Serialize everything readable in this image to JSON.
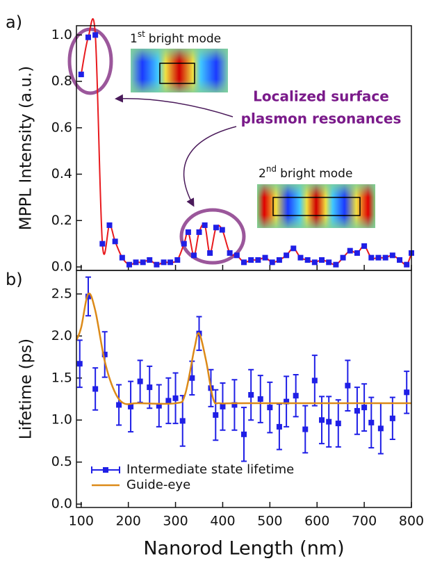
{
  "chart_data": [
    {
      "type": "line",
      "panel_label": "a)",
      "ylabel": "MPPL Intensity (a.u.)",
      "xlim": [
        90,
        800
      ],
      "xticks": [
        100,
        200,
        300,
        400,
        500,
        600,
        700,
        800
      ],
      "ylim": [
        -0.015,
        1.04
      ],
      "yticks": [
        {
          "value": 0,
          "label": "0.0"
        },
        {
          "value": 0.2,
          "label": "0.2"
        },
        {
          "value": 0.4,
          "label": "0.4"
        },
        {
          "value": 0.6,
          "label": "0.6"
        },
        {
          "value": 0.8,
          "label": "0.8"
        },
        {
          "value": 1,
          "label": "1.0"
        }
      ],
      "annotations": {
        "mode1": {
          "number": "1",
          "suffix": "st",
          "text": "bright mode"
        },
        "mode2": {
          "number": "2",
          "suffix": "nd",
          "text": "bright mode"
        },
        "lspr": [
          "Localized surface",
          "plasmon resonances"
        ]
      },
      "series": [
        {
          "color": "#1f1fe6",
          "line_color": "#e8191d",
          "x": [
            100,
            115,
            130,
            145,
            160,
            172,
            187,
            202,
            216,
            231,
            245,
            260,
            275,
            289,
            304,
            318,
            327,
            339,
            350,
            362,
            373,
            386,
            399,
            415,
            430,
            445,
            460,
            475,
            490,
            505,
            520,
            535,
            550,
            565,
            580,
            595,
            610,
            625,
            640,
            655,
            670,
            685,
            700,
            715,
            730,
            745,
            760,
            775,
            790,
            800
          ],
          "values": [
            0.83,
            0.99,
            1.0,
            0.1,
            0.18,
            0.11,
            0.04,
            0.01,
            0.02,
            0.02,
            0.03,
            0.01,
            0.02,
            0.02,
            0.03,
            0.1,
            0.15,
            0.05,
            0.15,
            0.18,
            0.06,
            0.17,
            0.16,
            0.06,
            0.05,
            0.02,
            0.03,
            0.03,
            0.04,
            0.02,
            0.03,
            0.05,
            0.08,
            0.04,
            0.03,
            0.02,
            0.03,
            0.02,
            0.01,
            0.04,
            0.07,
            0.06,
            0.09,
            0.04,
            0.04,
            0.04,
            0.05,
            0.03,
            0.01,
            0.06
          ]
        }
      ]
    },
    {
      "type": "errorbar",
      "panel_label": "b)",
      "ylabel": "Lifetime (ps)",
      "xlabel": "Nanorod Length (nm)",
      "legend": "lower left",
      "xlim": [
        90,
        800
      ],
      "xticks": [
        100,
        200,
        300,
        400,
        500,
        600,
        700,
        800
      ],
      "ylim": [
        -0.04,
        2.78
      ],
      "yticks": [
        {
          "value": 0,
          "label": "0.0"
        },
        {
          "value": 0.5,
          "label": "0.5"
        },
        {
          "value": 1,
          "label": "1.0"
        },
        {
          "value": 1.5,
          "label": "1.5"
        },
        {
          "value": 2,
          "label": "2.0"
        },
        {
          "value": 2.5,
          "label": "2.5"
        }
      ],
      "series": [
        {
          "name": "Intermediate state lifetime",
          "color": "#1f1fe6",
          "x": [
            97,
            115,
            130,
            150,
            180,
            205,
            225,
            245,
            265,
            285,
            300,
            315,
            335,
            350,
            375,
            385,
            400,
            425,
            445,
            460,
            480,
            500,
            520,
            535,
            555,
            575,
            595,
            610,
            625,
            645,
            665,
            685,
            700,
            715,
            735,
            760,
            790
          ],
          "values": [
            1.67,
            2.47,
            1.37,
            1.78,
            1.18,
            1.16,
            1.46,
            1.39,
            1.17,
            1.23,
            1.26,
            0.99,
            1.5,
            2.03,
            1.38,
            1.06,
            1.16,
            1.18,
            0.83,
            1.3,
            1.25,
            1.15,
            0.92,
            1.22,
            1.29,
            0.89,
            1.47,
            1.0,
            0.98,
            0.96,
            1.41,
            1.11,
            1.15,
            0.97,
            0.9,
            1.02,
            1.33
          ],
          "errors": [
            0.28,
            0.23,
            0.25,
            0.27,
            0.24,
            0.3,
            0.25,
            0.25,
            0.25,
            0.27,
            0.3,
            0.3,
            0.2,
            0.2,
            0.22,
            0.3,
            0.28,
            0.3,
            0.32,
            0.3,
            0.28,
            0.3,
            0.27,
            0.3,
            0.25,
            0.28,
            0.3,
            0.28,
            0.3,
            0.28,
            0.3,
            0.28,
            0.28,
            0.3,
            0.3,
            0.25,
            0.25
          ]
        },
        {
          "name": "Guide-eye",
          "color": "#dc8a18",
          "x": [
            90,
            100,
            115,
            130,
            150,
            170,
            190,
            220,
            300,
            320,
            340,
            350,
            365,
            380,
            395,
            450,
            800
          ],
          "values": [
            1.95,
            2.1,
            2.5,
            2.3,
            1.7,
            1.35,
            1.2,
            1.2,
            1.2,
            1.3,
            1.85,
            2.03,
            1.7,
            1.25,
            1.2,
            1.2,
            1.2
          ]
        }
      ]
    }
  ]
}
